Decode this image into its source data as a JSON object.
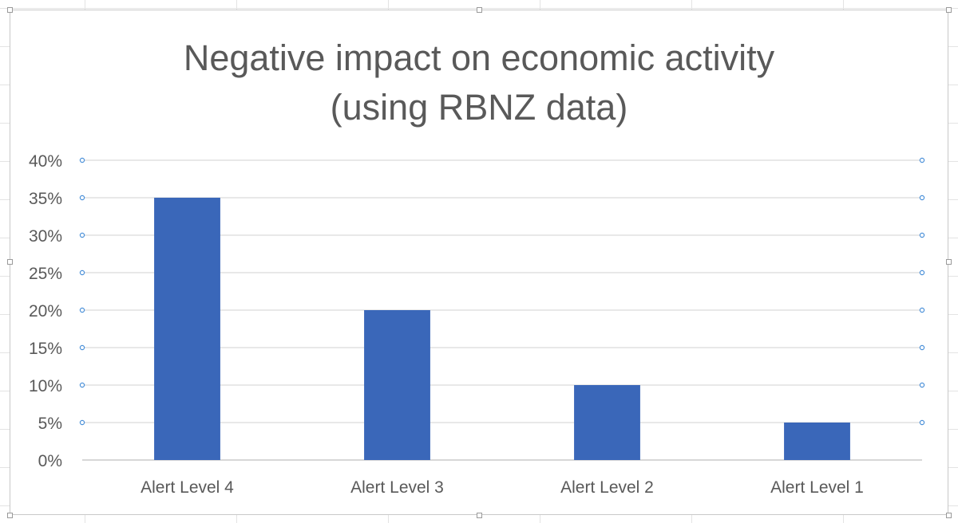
{
  "colors": {
    "bar": "#3A67B9",
    "grid": "#d9d9d9",
    "text": "#595959",
    "selection": "#4a90d9"
  },
  "chart_data": {
    "type": "bar",
    "title": [
      "Negative impact on economic activity",
      "(using RBNZ data)"
    ],
    "categories": [
      "Alert Level 4",
      "Alert Level 3",
      "Alert Level 2",
      "Alert Level 1"
    ],
    "values": [
      0.35,
      0.2,
      0.1,
      0.05
    ],
    "ylim": [
      0,
      0.4
    ],
    "yticks": [
      0,
      0.05,
      0.1,
      0.15,
      0.2,
      0.25,
      0.3,
      0.35,
      0.4
    ],
    "ytick_labels": [
      "0%",
      "5%",
      "10%",
      "15%",
      "20%",
      "25%",
      "30%",
      "35%",
      "40%"
    ],
    "xlabel": "",
    "ylabel": "",
    "grid": true,
    "legend": "none"
  }
}
